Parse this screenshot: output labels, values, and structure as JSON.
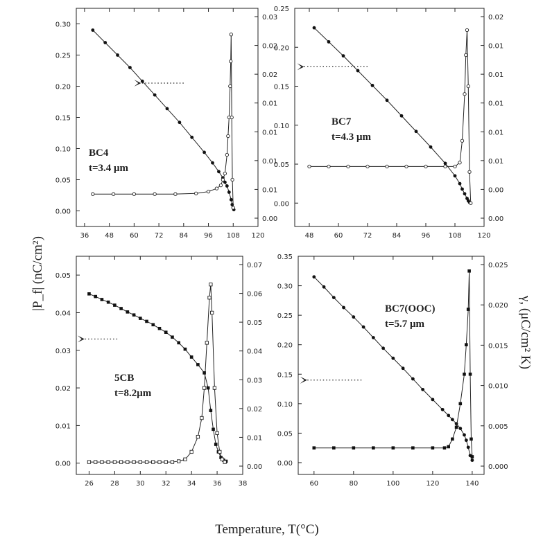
{
  "figure": {
    "xlabel": "Temperature, T(°C)",
    "left_ylabel": "|P_f| (nC/cm²)",
    "right_ylabel": "γ, (μC/cm² K)"
  },
  "chart_data": [
    {
      "type": "line",
      "label_lines": [
        "BC4",
        "t=3.4 μm"
      ],
      "xlim": [
        32,
        120
      ],
      "xticks": [
        36,
        48,
        60,
        72,
        84,
        96,
        108,
        120
      ],
      "ylim_left": [
        -0.025,
        0.325
      ],
      "yticks_left": [
        "0.00",
        "0.05",
        "0.10",
        "0.15",
        "0.20",
        "0.25",
        "0.30"
      ],
      "yticks_right": [
        "0.00",
        "0.01",
        "0.01",
        "0.01",
        "0.01",
        "0.02",
        "0.02",
        "0.03"
      ],
      "arrow": {
        "x1": 84,
        "x2": 60,
        "y": 0.205
      },
      "series": [
        {
          "axis": "left",
          "marker": "filled-dot",
          "x": [
            40,
            46,
            52,
            58,
            64,
            70,
            76,
            82,
            88,
            94,
            98,
            101,
            103,
            104,
            105,
            106,
            107,
            107.5,
            108,
            108.3
          ],
          "y": [
            0.29,
            0.27,
            0.25,
            0.23,
            0.208,
            0.186,
            0.164,
            0.142,
            0.118,
            0.094,
            0.077,
            0.063,
            0.053,
            0.046,
            0.04,
            0.03,
            0.018,
            0.01,
            0.005,
            0.002
          ]
        },
        {
          "axis": "left",
          "marker": "open-dot",
          "x": [
            40,
            50,
            60,
            70,
            80,
            90,
            96,
            100,
            102,
            103,
            104,
            105,
            105.5,
            106,
            106.5,
            106.8,
            107,
            107.3,
            107.6,
            108
          ],
          "y": [
            0.027,
            0.027,
            0.027,
            0.027,
            0.027,
            0.028,
            0.031,
            0.036,
            0.041,
            0.05,
            0.06,
            0.09,
            0.12,
            0.15,
            0.2,
            0.24,
            0.283,
            0.15,
            0.05,
            0.005
          ]
        }
      ]
    },
    {
      "type": "line",
      "label_lines": [
        "BC7",
        "t=4.3 μm"
      ],
      "xlim": [
        42,
        120
      ],
      "xticks": [
        48,
        60,
        72,
        84,
        96,
        108,
        120
      ],
      "ylim_left": [
        -0.03,
        0.25
      ],
      "yticks_left": [
        "0.00",
        "0.05",
        "0.10",
        "0.15",
        "0.20",
        "0.25"
      ],
      "yticks_right": [
        "0.00",
        "0.00",
        "0.01",
        "0.01",
        "0.01",
        "0.01",
        "0.01",
        "0.02"
      ],
      "arrow": {
        "x1": 72,
        "x2": 43,
        "y": 0.175
      },
      "series": [
        {
          "axis": "left",
          "marker": "filled-dot",
          "x": [
            50,
            56,
            62,
            68,
            74,
            80,
            86,
            92,
            98,
            104,
            108,
            110,
            111,
            112,
            113,
            113.5,
            114,
            114.5
          ],
          "y": [
            0.225,
            0.207,
            0.189,
            0.17,
            0.151,
            0.132,
            0.112,
            0.092,
            0.072,
            0.051,
            0.035,
            0.025,
            0.018,
            0.012,
            0.006,
            0.003,
            0.001,
            0.0
          ]
        },
        {
          "axis": "left",
          "marker": "open-dot",
          "x": [
            48,
            56,
            64,
            72,
            80,
            88,
            96,
            104,
            108,
            110,
            111,
            112,
            112.5,
            113,
            113.5,
            114,
            114.5
          ],
          "y": [
            0.047,
            0.047,
            0.047,
            0.047,
            0.047,
            0.047,
            0.047,
            0.047,
            0.047,
            0.052,
            0.08,
            0.14,
            0.19,
            0.222,
            0.15,
            0.04,
            0.0
          ]
        }
      ]
    },
    {
      "type": "line",
      "label_lines": [
        "5CB",
        "t=8.2μm"
      ],
      "xlim": [
        25,
        38
      ],
      "xticks": [
        26,
        28,
        30,
        32,
        34,
        36,
        38
      ],
      "ylim_left": [
        -0.003,
        0.055
      ],
      "yticks_left": [
        "0.00",
        "0.01",
        "0.02",
        "0.03",
        "0.04",
        "0.05"
      ],
      "yticks_right": [
        "0.00",
        "0.01",
        "0.02",
        "0.03",
        "0.04",
        "0.05",
        "0.06",
        "0.07"
      ],
      "arrow": {
        "x1": 28.2,
        "x2": 25.1,
        "y": 0.033
      },
      "series": [
        {
          "axis": "left",
          "marker": "filled-square",
          "x": [
            26,
            26.5,
            27,
            27.5,
            28,
            28.5,
            29,
            29.5,
            30,
            30.5,
            31,
            31.5,
            32,
            32.5,
            33,
            33.5,
            34,
            34.5,
            35,
            35.3,
            35.5,
            35.7,
            35.9,
            36.1,
            36.3,
            36.5,
            36.7
          ],
          "y": [
            0.045,
            0.0443,
            0.0435,
            0.0428,
            0.042,
            0.0411,
            0.0402,
            0.0394,
            0.0385,
            0.0377,
            0.0368,
            0.0358,
            0.0348,
            0.0335,
            0.032,
            0.0303,
            0.0282,
            0.0262,
            0.024,
            0.02,
            0.014,
            0.009,
            0.005,
            0.003,
            0.0015,
            0.0008,
            0.0005
          ]
        },
        {
          "axis": "left",
          "marker": "open-square",
          "x": [
            26,
            26.5,
            27,
            27.5,
            28,
            28.5,
            29,
            29.5,
            30,
            30.5,
            31,
            31.5,
            32,
            32.5,
            33,
            33.5,
            34,
            34.5,
            34.8,
            35,
            35.2,
            35.4,
            35.5,
            35.6,
            35.8,
            36,
            36.2,
            36.4,
            36.6
          ],
          "y": [
            0.0003,
            0.0003,
            0.0003,
            0.0003,
            0.0003,
            0.0003,
            0.0003,
            0.0003,
            0.0003,
            0.0003,
            0.0003,
            0.0003,
            0.0003,
            0.0003,
            0.0005,
            0.001,
            0.003,
            0.007,
            0.012,
            0.02,
            0.032,
            0.044,
            0.0475,
            0.04,
            0.02,
            0.008,
            0.003,
            0.001,
            0.0003
          ]
        }
      ]
    },
    {
      "type": "line",
      "label_lines": [
        "BC7(OOC)",
        "t=5.7 μm"
      ],
      "xlim": [
        52,
        146
      ],
      "xticks": [
        60,
        80,
        100,
        120,
        140
      ],
      "ylim_left": [
        -0.02,
        0.35
      ],
      "yticks_left": [
        "0.00",
        "0.05",
        "0.10",
        "0.15",
        "0.20",
        "0.25",
        "0.30",
        "0.35"
      ],
      "yticks_right": [
        "0.000",
        "0.005",
        "0.010",
        "0.015",
        "0.020",
        "0.025"
      ],
      "arrow": {
        "x1": 84,
        "x2": 53,
        "y": 0.14
      },
      "series": [
        {
          "axis": "left",
          "marker": "filled-dot",
          "x": [
            60,
            65,
            70,
            75,
            80,
            85,
            90,
            95,
            100,
            105,
            110,
            115,
            120,
            125,
            128,
            130,
            132,
            134,
            136,
            137,
            138,
            139,
            140
          ],
          "y": [
            0.315,
            0.298,
            0.28,
            0.263,
            0.247,
            0.23,
            0.212,
            0.194,
            0.177,
            0.16,
            0.142,
            0.124,
            0.107,
            0.09,
            0.08,
            0.073,
            0.066,
            0.058,
            0.047,
            0.038,
            0.026,
            0.012,
            0.004
          ]
        },
        {
          "axis": "left",
          "marker": "filled-square",
          "x": [
            60,
            70,
            80,
            90,
            100,
            110,
            120,
            126,
            128,
            130,
            132,
            134,
            136,
            137,
            138,
            138.5,
            139,
            139.5,
            140
          ],
          "y": [
            0.025,
            0.025,
            0.025,
            0.025,
            0.025,
            0.025,
            0.025,
            0.025,
            0.027,
            0.04,
            0.06,
            0.1,
            0.15,
            0.2,
            0.26,
            0.325,
            0.15,
            0.04,
            0.01
          ]
        }
      ]
    }
  ]
}
